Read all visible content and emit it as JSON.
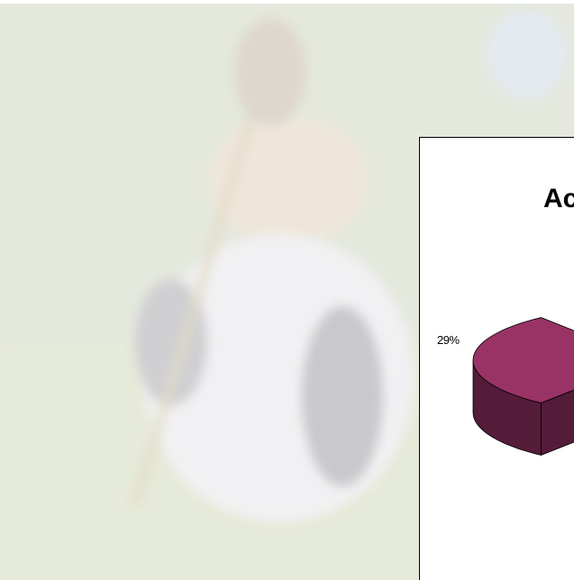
{
  "chart_data": {
    "type": "pie",
    "title": "Ac",
    "values": [
      29
    ],
    "value_labels": [
      "29%"
    ],
    "colors": [
      "#993366"
    ]
  }
}
